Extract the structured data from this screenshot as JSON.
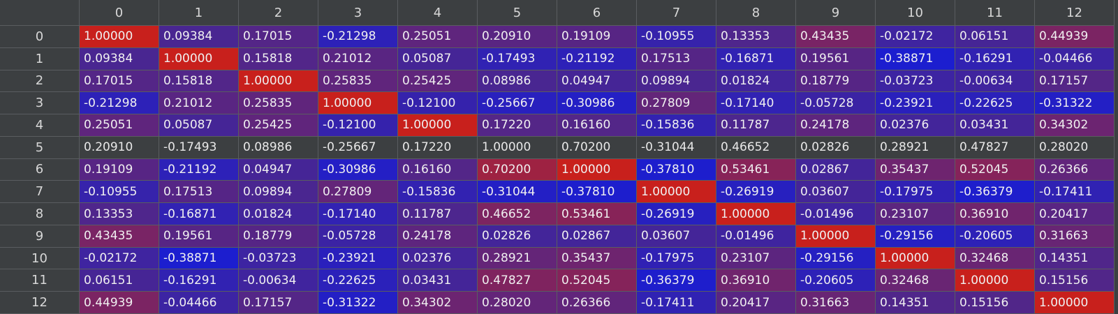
{
  "columns": [
    "0",
    "1",
    "2",
    "3",
    "4",
    "5",
    "6",
    "7",
    "8",
    "9",
    "10",
    "11",
    "12"
  ],
  "rows": [
    {
      "label": "0",
      "values": [
        "1.00000",
        "0.09384",
        "0.17015",
        "-0.21298",
        "0.25051",
        "0.20910",
        "0.19109",
        "-0.10955",
        "0.13353",
        "0.43435",
        "-0.02172",
        "0.06151",
        "0.44939"
      ]
    },
    {
      "label": "1",
      "values": [
        "0.09384",
        "1.00000",
        "0.15818",
        "0.21012",
        "0.05087",
        "-0.17493",
        "-0.21192",
        "0.17513",
        "-0.16871",
        "0.19561",
        "-0.38871",
        "-0.16291",
        "-0.04466"
      ]
    },
    {
      "label": "2",
      "values": [
        "0.17015",
        "0.15818",
        "1.00000",
        "0.25835",
        "0.25425",
        "0.08986",
        "0.04947",
        "0.09894",
        "0.01824",
        "0.18779",
        "-0.03723",
        "-0.00634",
        "0.17157"
      ]
    },
    {
      "label": "3",
      "values": [
        "-0.21298",
        "0.21012",
        "0.25835",
        "1.00000",
        "-0.12100",
        "-0.25667",
        "-0.30986",
        "0.27809",
        "-0.17140",
        "-0.05728",
        "-0.23921",
        "-0.22625",
        "-0.31322"
      ]
    },
    {
      "label": "4",
      "values": [
        "0.25051",
        "0.05087",
        "0.25425",
        "-0.12100",
        "1.00000",
        "0.17220",
        "0.16160",
        "-0.15836",
        "0.11787",
        "0.24178",
        "0.02376",
        "0.03431",
        "0.34302"
      ]
    },
    {
      "label": "5",
      "values": [
        "0.20910",
        "-0.17493",
        "0.08986",
        "-0.25667",
        "0.17220",
        "1.00000",
        "0.70200",
        "-0.31044",
        "0.46652",
        "0.02826",
        "0.28921",
        "0.47827",
        "0.28020"
      ]
    },
    {
      "label": "6",
      "values": [
        "0.19109",
        "-0.21192",
        "0.04947",
        "-0.30986",
        "0.16160",
        "0.70200",
        "1.00000",
        "-0.37810",
        "0.53461",
        "0.02867",
        "0.35437",
        "0.52045",
        "0.26366"
      ]
    },
    {
      "label": "7",
      "values": [
        "-0.10955",
        "0.17513",
        "0.09894",
        "0.27809",
        "-0.15836",
        "-0.31044",
        "-0.37810",
        "1.00000",
        "-0.26919",
        "0.03607",
        "-0.17975",
        "-0.36379",
        "-0.17411"
      ]
    },
    {
      "label": "8",
      "values": [
        "0.13353",
        "-0.16871",
        "0.01824",
        "-0.17140",
        "0.11787",
        "0.46652",
        "0.53461",
        "-0.26919",
        "1.00000",
        "-0.01496",
        "0.23107",
        "0.36910",
        "0.20417"
      ]
    },
    {
      "label": "9",
      "values": [
        "0.43435",
        "0.19561",
        "0.18779",
        "-0.05728",
        "0.24178",
        "0.02826",
        "0.02867",
        "0.03607",
        "-0.01496",
        "1.00000",
        "-0.29156",
        "-0.20605",
        "0.31663"
      ]
    },
    {
      "label": "10",
      "values": [
        "-0.02172",
        "-0.38871",
        "-0.03723",
        "-0.23921",
        "0.02376",
        "0.28921",
        "0.35437",
        "-0.17975",
        "0.23107",
        "-0.29156",
        "1.00000",
        "0.32468",
        "0.14351"
      ]
    },
    {
      "label": "11",
      "values": [
        "0.06151",
        "-0.16291",
        "-0.00634",
        "-0.22625",
        "0.03431",
        "0.47827",
        "0.52045",
        "-0.36379",
        "0.36910",
        "-0.20605",
        "0.32468",
        "1.00000",
        "0.15156"
      ]
    },
    {
      "label": "12",
      "values": [
        "0.44939",
        "-0.04466",
        "0.17157",
        "-0.31322",
        "0.34302",
        "0.28020",
        "0.26366",
        "-0.17411",
        "0.20417",
        "0.31663",
        "0.14351",
        "0.15156",
        "1.00000"
      ]
    }
  ],
  "uncolored_row": "5",
  "colors": {
    "min": "#1c1ecf",
    "mid": "#4a2690",
    "max": "#c8201c",
    "background": "#3c3f41"
  }
}
